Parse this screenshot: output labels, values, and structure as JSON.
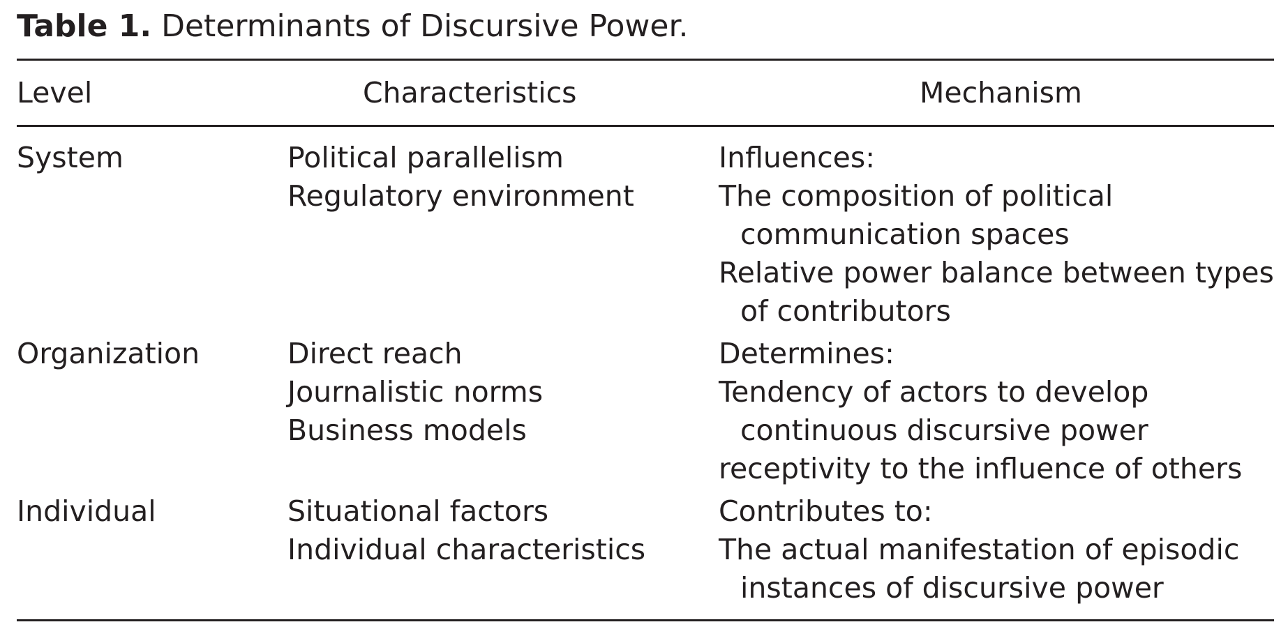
{
  "caption": {
    "label": "Table 1.",
    "title": "Determinants of Discursive Power."
  },
  "columns": [
    "Level",
    "Characteristics",
    "Mechanism"
  ],
  "rows": [
    {
      "level": "System",
      "characteristics": [
        "Political parallelism",
        "Regulatory environment"
      ],
      "mechanism_intro": "Influences:",
      "mechanism_items": [
        "The composition of political communication spaces",
        "Relative power balance between types of contributors"
      ]
    },
    {
      "level": "Organization",
      "characteristics": [
        "Direct reach",
        "Journalistic norms",
        "Business models"
      ],
      "mechanism_intro": "Determines:",
      "mechanism_items": [
        "Tendency of actors to develop continuous discursive power",
        "receptivity to the influence of others"
      ]
    },
    {
      "level": "Individual",
      "characteristics": [
        "Situational factors",
        "Individual characteristics"
      ],
      "mechanism_intro": "Contributes to:",
      "mechanism_items": [
        "The actual manifestation of episodic instances of discursive power"
      ]
    }
  ]
}
